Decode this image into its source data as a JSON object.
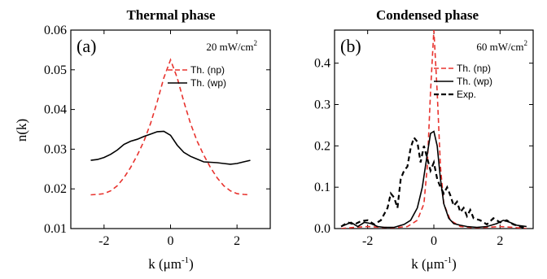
{
  "colors": {
    "np": "#e8332e",
    "wp": "#000000",
    "exp": "#000000"
  },
  "chart_data": [
    {
      "type": "line",
      "title": "Thermal phase",
      "panel_label": "(a)",
      "power_label": "20 mW/cm",
      "power_sup": "2",
      "xlabel": "k (μm",
      "xlabel_sup": "-1",
      "xlabel_close": ")",
      "ylabel": "n(k)",
      "xlim": [
        -3.0,
        3.0
      ],
      "ylim": [
        0.01,
        0.06
      ],
      "x_ticks": [
        -2,
        0,
        2
      ],
      "x_tick_labels": [
        "-2",
        "0",
        "2"
      ],
      "y_ticks": [
        0.01,
        0.02,
        0.03,
        0.04,
        0.05,
        0.06
      ],
      "y_tick_labels": [
        "0.01",
        "0.02",
        "0.03",
        "0.04",
        "0.05",
        "0.06"
      ],
      "legend_position": "right",
      "series": [
        {
          "name": "Th. (np)",
          "style": "dashed",
          "color": "#e8332e",
          "x": [
            -2.4,
            -2.2,
            -2.0,
            -1.8,
            -1.6,
            -1.4,
            -1.2,
            -1.0,
            -0.8,
            -0.6,
            -0.4,
            -0.2,
            0.0,
            0.2,
            0.4,
            0.6,
            0.8,
            1.0,
            1.2,
            1.4,
            1.6,
            1.8,
            2.0,
            2.2,
            2.4
          ],
          "y": [
            0.0185,
            0.0186,
            0.0188,
            0.0195,
            0.0208,
            0.0228,
            0.0254,
            0.0285,
            0.032,
            0.0365,
            0.042,
            0.048,
            0.0525,
            0.048,
            0.042,
            0.0365,
            0.032,
            0.0285,
            0.0254,
            0.0228,
            0.0208,
            0.0195,
            0.0188,
            0.0186,
            0.0185
          ]
        },
        {
          "name": "Th. (wp)",
          "style": "solid",
          "color": "#000000",
          "x": [
            -2.4,
            -2.2,
            -2.0,
            -1.8,
            -1.6,
            -1.4,
            -1.2,
            -1.0,
            -0.8,
            -0.6,
            -0.4,
            -0.2,
            0.0,
            0.2,
            0.4,
            0.6,
            0.8,
            1.0,
            1.2,
            1.4,
            1.6,
            1.8,
            2.0,
            2.2,
            2.4
          ],
          "y": [
            0.0272,
            0.0274,
            0.0279,
            0.0287,
            0.0298,
            0.0312,
            0.032,
            0.0325,
            0.0332,
            0.0338,
            0.0344,
            0.0345,
            0.0335,
            0.031,
            0.0292,
            0.0282,
            0.0275,
            0.0268,
            0.0267,
            0.0266,
            0.0264,
            0.0262,
            0.0264,
            0.0268,
            0.0272
          ]
        }
      ]
    },
    {
      "type": "line",
      "title": "Condensed phase",
      "panel_label": "(b)",
      "power_label": "60 mW/cm",
      "power_sup": "2",
      "xlabel": "k (μm",
      "xlabel_sup": "-1",
      "xlabel_close": ")",
      "xlim": [
        -3.0,
        3.0
      ],
      "ylim": [
        0.0,
        0.48
      ],
      "x_ticks": [
        -2,
        0,
        2
      ],
      "x_tick_labels": [
        "-2",
        "0",
        "2"
      ],
      "y_ticks": [
        0.0,
        0.1,
        0.2,
        0.3,
        0.4
      ],
      "y_tick_labels": [
        "0.0",
        "0.1",
        "0.2",
        "0.3",
        "0.4"
      ],
      "legend_position": "right",
      "series": [
        {
          "name": "Th. (np)",
          "style": "dashed",
          "color": "#e8332e",
          "x": [
            -2.8,
            -2.4,
            -2.0,
            -1.6,
            -1.2,
            -0.8,
            -0.5,
            -0.3,
            -0.2,
            -0.1,
            0.0,
            0.1,
            0.2,
            0.3,
            0.5,
            0.8,
            1.2,
            1.6,
            2.0,
            2.4,
            2.8
          ],
          "y": [
            0.0,
            0.003,
            0.005,
            0.003,
            0.002,
            0.005,
            0.02,
            0.06,
            0.15,
            0.33,
            0.48,
            0.33,
            0.15,
            0.06,
            0.02,
            0.005,
            0.002,
            0.003,
            0.005,
            0.003,
            0.0
          ]
        },
        {
          "name": "Th. (wp)",
          "style": "solid",
          "color": "#000000",
          "x": [
            -2.8,
            -2.5,
            -2.3,
            -2.1,
            -1.9,
            -1.7,
            -1.5,
            -1.2,
            -0.9,
            -0.7,
            -0.5,
            -0.35,
            -0.2,
            -0.1,
            0.0,
            0.1,
            0.2,
            0.3,
            0.45,
            0.6,
            0.8,
            1.0,
            1.3,
            1.6,
            1.9,
            2.1,
            2.3,
            2.5,
            2.8
          ],
          "y": [
            0.005,
            0.015,
            0.005,
            0.015,
            0.012,
            0.005,
            0.003,
            0.003,
            0.01,
            0.02,
            0.05,
            0.1,
            0.18,
            0.23,
            0.235,
            0.2,
            0.12,
            0.06,
            0.025,
            0.012,
            0.008,
            0.005,
            0.003,
            0.005,
            0.012,
            0.02,
            0.015,
            0.008,
            0.005
          ]
        },
        {
          "name": "Exp.",
          "style": "dashed",
          "color": "#000000",
          "x": [
            -2.8,
            -2.6,
            -2.4,
            -2.2,
            -2.0,
            -1.8,
            -1.6,
            -1.4,
            -1.3,
            -1.2,
            -1.1,
            -1.0,
            -0.9,
            -0.8,
            -0.7,
            -0.6,
            -0.5,
            -0.4,
            -0.3,
            -0.2,
            -0.1,
            0.0,
            0.1,
            0.2,
            0.3,
            0.4,
            0.5,
            0.6,
            0.7,
            0.8,
            0.9,
            1.0,
            1.1,
            1.2,
            1.4,
            1.6,
            1.8,
            2.0,
            2.2,
            2.4,
            2.6,
            2.8
          ],
          "y": [
            0.005,
            0.015,
            0.01,
            0.018,
            0.02,
            0.01,
            0.02,
            0.05,
            0.085,
            0.075,
            0.05,
            0.12,
            0.14,
            0.15,
            0.195,
            0.22,
            0.21,
            0.16,
            0.2,
            0.17,
            0.14,
            0.16,
            0.12,
            0.1,
            0.085,
            0.1,
            0.08,
            0.055,
            0.065,
            0.04,
            0.05,
            0.03,
            0.045,
            0.025,
            0.02,
            0.01,
            0.025,
            0.015,
            0.02,
            0.01,
            0.005,
            0.0
          ]
        }
      ]
    }
  ]
}
